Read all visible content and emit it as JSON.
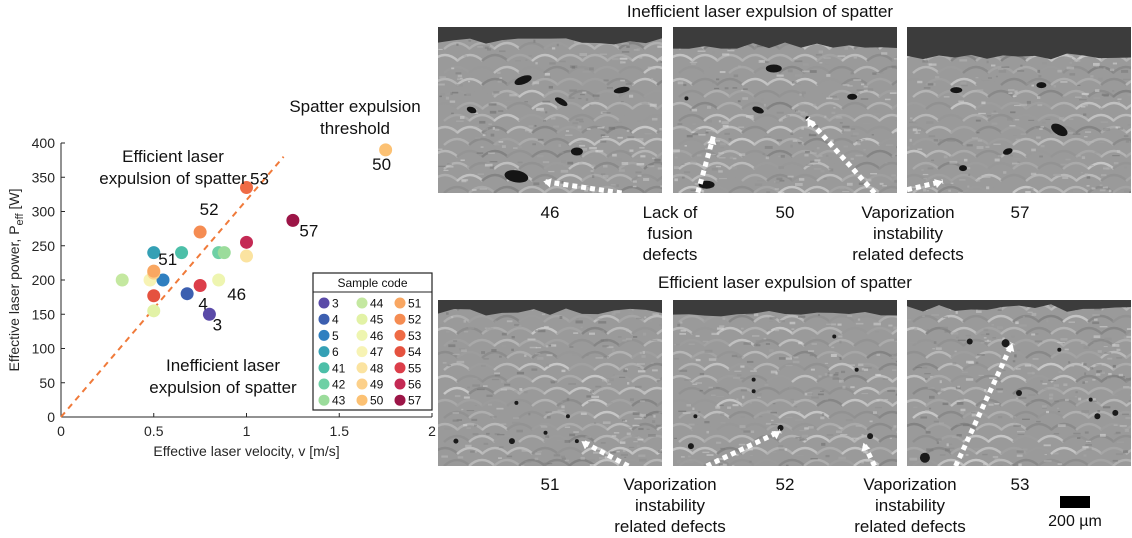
{
  "chart_data": {
    "type": "scatter",
    "xlabel": "Effective laser velocity, v [m/s]",
    "ylabel": "Effective laser power, P",
    "ylabel_sub": "eff",
    "ylabel_unit": " [W]",
    "xlim": [
      0,
      2
    ],
    "ylim": [
      0,
      400
    ],
    "xticks": [
      "0",
      "0.5",
      "1",
      "1.5",
      "2"
    ],
    "yticks": [
      "0",
      "50",
      "100",
      "150",
      "200",
      "250",
      "300",
      "350",
      "400"
    ],
    "threshold_line": {
      "x": [
        0,
        1.2
      ],
      "y": [
        0,
        380
      ]
    },
    "threshold_label": [
      "Spatter expulsion",
      "threshold"
    ],
    "region_labels": {
      "efficient": [
        "Efficient laser",
        "expulsion of spatter"
      ],
      "inefficient": [
        "Inefficient laser",
        "expulsion of spatter"
      ]
    },
    "points": [
      {
        "code": "3",
        "x": 0.8,
        "y": 150,
        "color": "#5a4aa8"
      },
      {
        "code": "4",
        "x": 0.68,
        "y": 180,
        "color": "#3c5fb0"
      },
      {
        "code": "5",
        "x": 0.55,
        "y": 200,
        "color": "#2f7fc0"
      },
      {
        "code": "6",
        "x": 0.5,
        "y": 240,
        "color": "#34a0b5"
      },
      {
        "code": "41",
        "x": 0.65,
        "y": 240,
        "color": "#4cbfa8"
      },
      {
        "code": "42",
        "x": 0.85,
        "y": 240,
        "color": "#6ed0a5"
      },
      {
        "code": "43",
        "x": 0.88,
        "y": 240,
        "color": "#9bdc9b"
      },
      {
        "code": "44",
        "x": 0.33,
        "y": 200,
        "color": "#c4e8a0"
      },
      {
        "code": "45",
        "x": 0.5,
        "y": 155,
        "color": "#e2f2a6"
      },
      {
        "code": "46",
        "x": 0.85,
        "y": 200,
        "color": "#eef5b0"
      },
      {
        "code": "47",
        "x": 0.48,
        "y": 200,
        "color": "#f7f3b4"
      },
      {
        "code": "48",
        "x": 1.0,
        "y": 235,
        "color": "#fbe3a0"
      },
      {
        "code": "49",
        "x": 0.5,
        "y": 210,
        "color": "#fcd08a"
      },
      {
        "code": "50",
        "x": 1.75,
        "y": 390,
        "color": "#fcc173"
      },
      {
        "code": "51",
        "x": 0.5,
        "y": 213,
        "color": "#f9a762"
      },
      {
        "code": "52",
        "x": 0.75,
        "y": 270,
        "color": "#f58c52"
      },
      {
        "code": "53",
        "x": 1.0,
        "y": 335,
        "color": "#ef6b45"
      },
      {
        "code": "54",
        "x": 0.5,
        "y": 177,
        "color": "#e5523f"
      },
      {
        "code": "55",
        "x": 0.75,
        "y": 192,
        "color": "#dc3e4a"
      },
      {
        "code": "56",
        "x": 1.0,
        "y": 255,
        "color": "#c42a54"
      },
      {
        "code": "57",
        "x": 1.25,
        "y": 287,
        "color": "#9c1547"
      }
    ],
    "point_labels": [
      "3",
      "4",
      "46",
      "51",
      "52",
      "53",
      "50",
      "57"
    ],
    "legend_title": "Sample code",
    "legend_placement": "bottom-right"
  },
  "figure": {
    "top_title": "Inefficient laser expulsion of spatter",
    "bottom_title": "Efficient laser expulsion of spatter",
    "top_numbers": [
      "46",
      "50",
      "57"
    ],
    "bottom_numbers": [
      "51",
      "52",
      "53"
    ],
    "ann_lack": [
      "Lack of",
      "fusion",
      "defects"
    ],
    "ann_vapor": [
      "Vaporization",
      "instability",
      "related defects"
    ],
    "scale_bar": "200 µm"
  }
}
